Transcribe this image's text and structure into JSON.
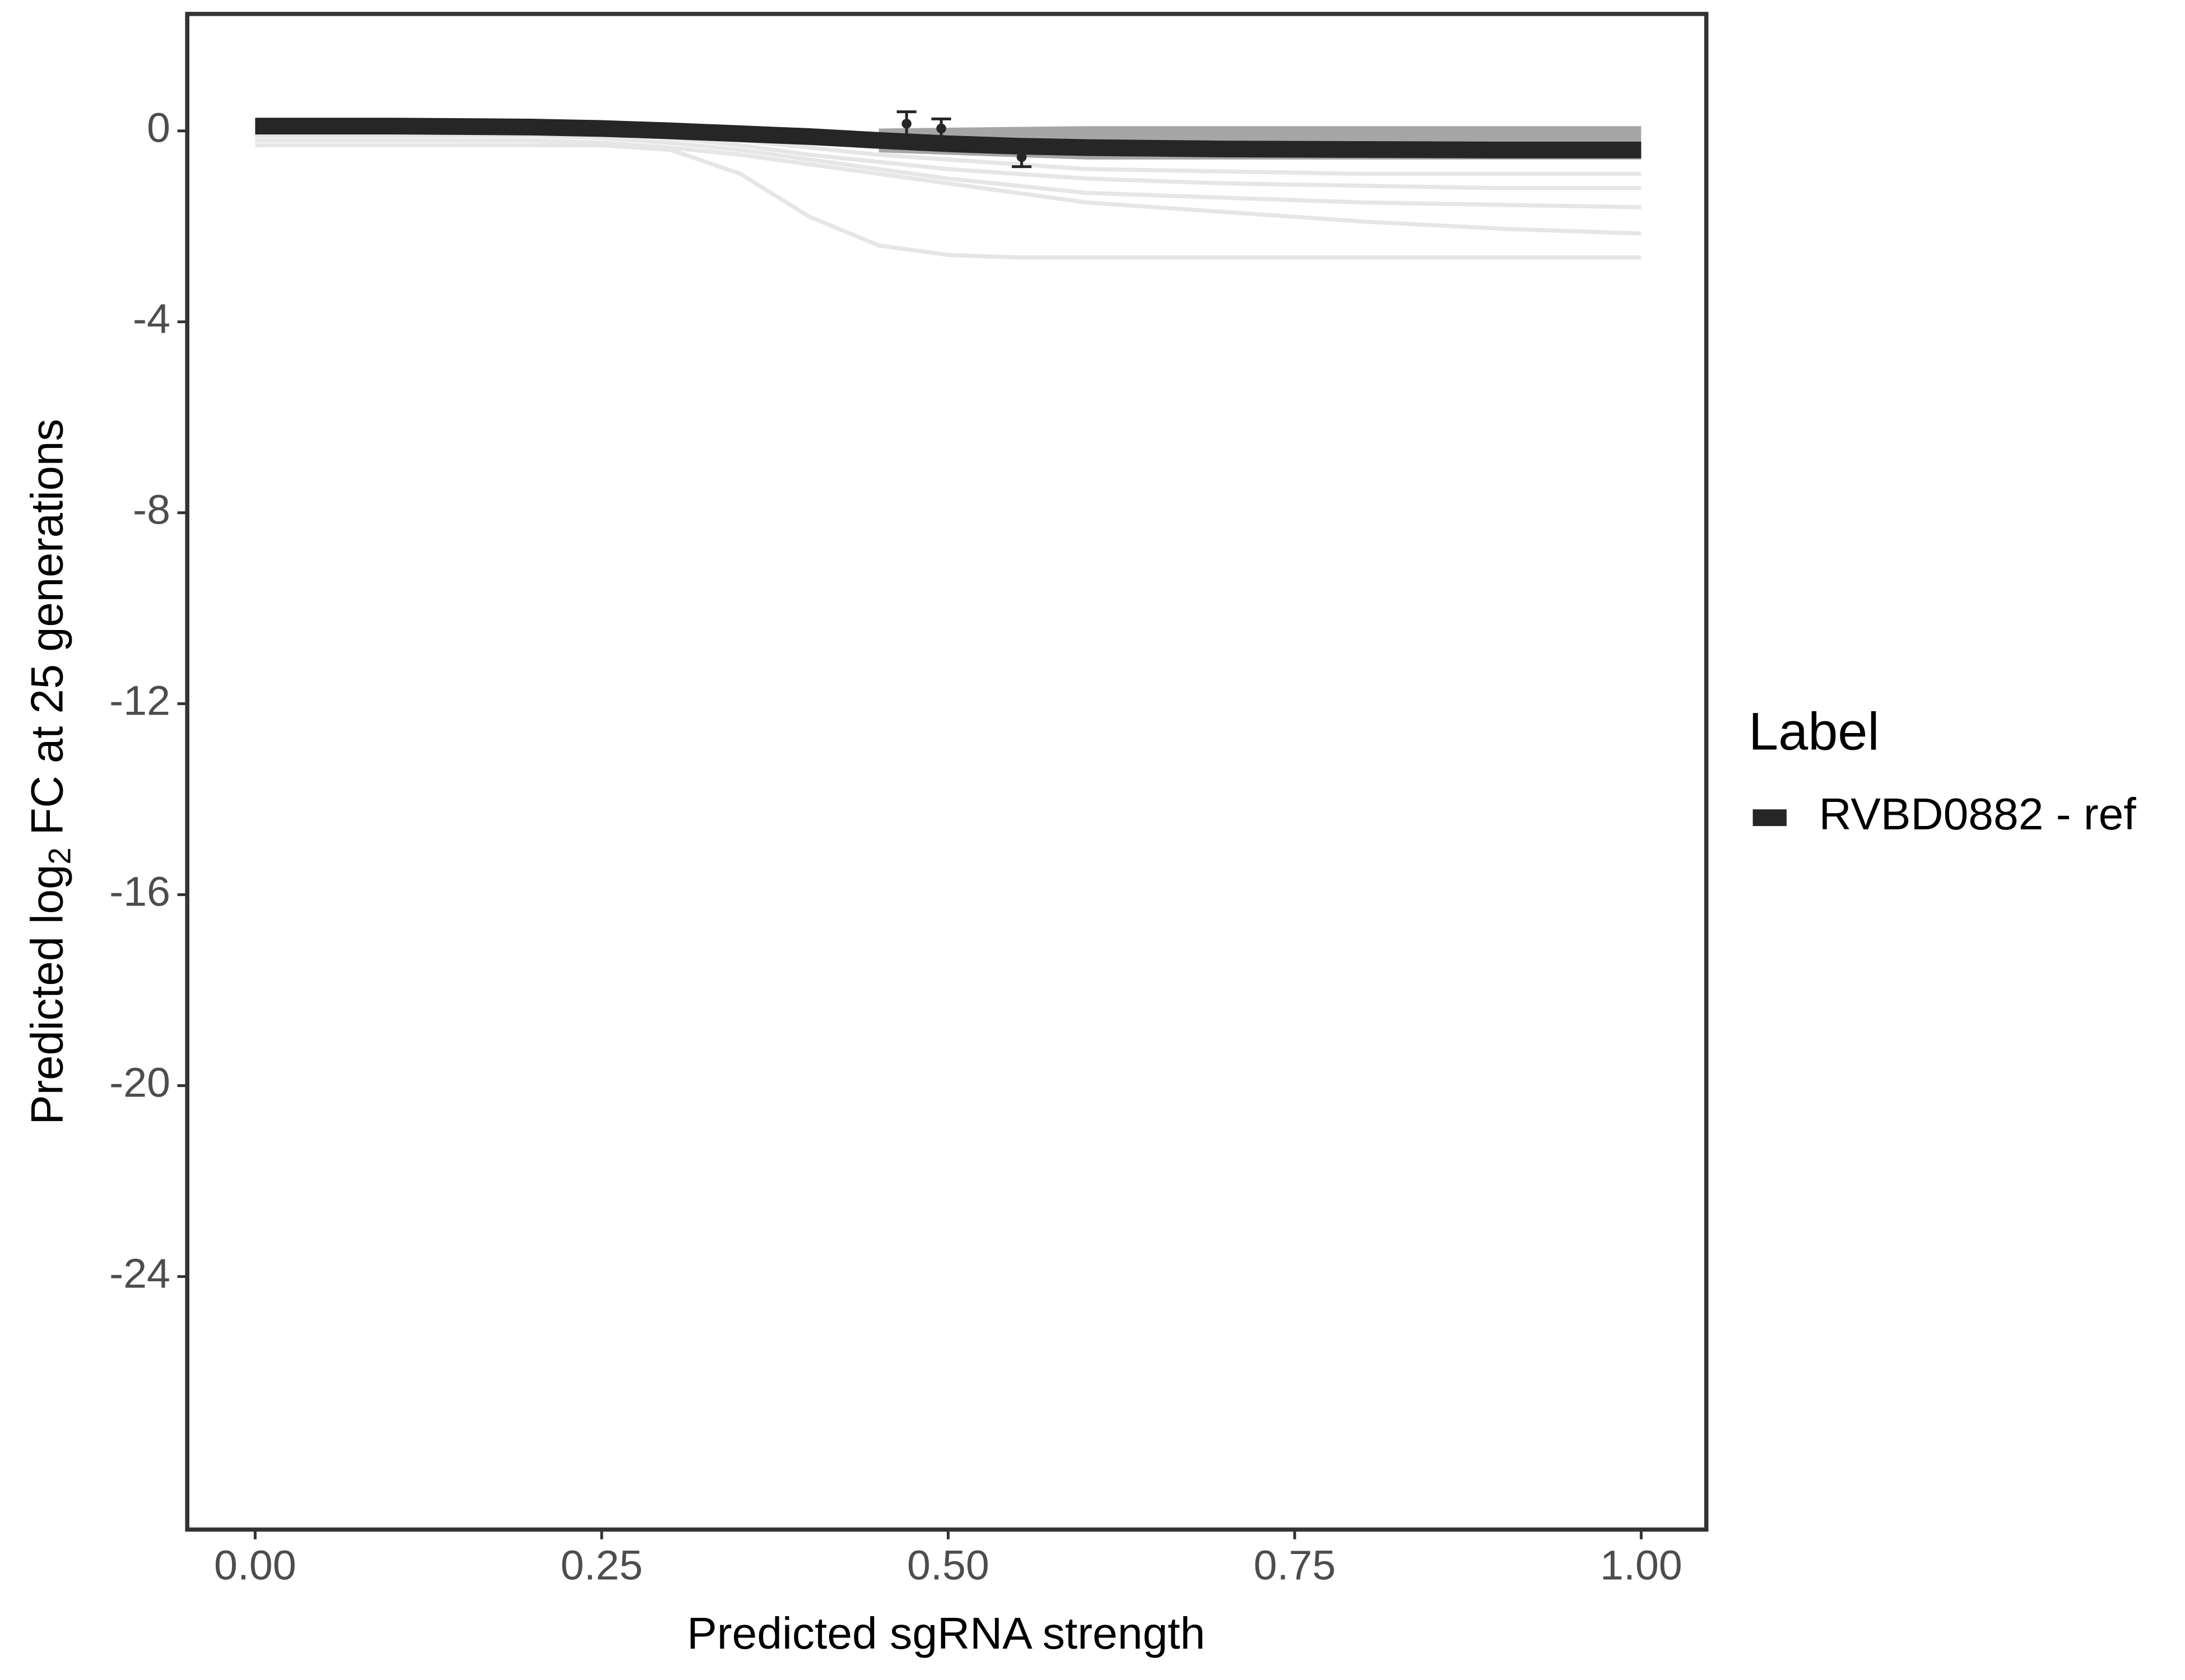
{
  "chart_data": {
    "type": "line",
    "xlabel": "Predicted sgRNA strength",
    "ylabel": {
      "before": "Predicted  log",
      "sub": "2",
      "after": " FC at 25 generations"
    },
    "legend_title": "Label",
    "x": [
      0,
      0.1,
      0.2,
      0.25,
      0.3,
      0.35,
      0.4,
      0.45,
      0.5,
      0.55,
      0.6,
      0.7,
      0.8,
      0.9,
      1.0
    ],
    "series": [
      {
        "name": "RVBD0882 - ref",
        "color": "#262626",
        "values": [
          0.1,
          0.1,
          0.08,
          0.05,
          0,
          -0.06,
          -0.12,
          -0.2,
          -0.27,
          -0.32,
          -0.35,
          -0.38,
          -0.39,
          -0.4,
          -0.4
        ]
      }
    ],
    "draws": {
      "color": "#e6e6e6",
      "values": [
        [
          -0.3,
          -0.3,
          -0.3,
          -0.3,
          -0.4,
          -0.9,
          -1.8,
          -2.4,
          -2.6,
          -2.65,
          -2.65,
          -2.65,
          -2.65,
          -2.65,
          -2.65
        ],
        [
          -0.2,
          -0.2,
          -0.2,
          -0.25,
          -0.35,
          -0.5,
          -0.7,
          -0.9,
          -1.1,
          -1.3,
          -1.5,
          -1.7,
          -1.9,
          -2.05,
          -2.15
        ],
        [
          -0.1,
          -0.1,
          -0.1,
          -0.15,
          -0.25,
          -0.4,
          -0.6,
          -0.8,
          -1.0,
          -1.15,
          -1.3,
          -1.4,
          -1.5,
          -1.55,
          -1.6
        ],
        [
          0,
          0,
          0,
          -0.05,
          -0.15,
          -0.3,
          -0.5,
          -0.65,
          -0.8,
          -0.9,
          -1.0,
          -1.1,
          -1.15,
          -1.2,
          -1.2
        ],
        [
          0.05,
          0.05,
          0,
          -0.05,
          -0.1,
          -0.2,
          -0.35,
          -0.5,
          -0.6,
          -0.7,
          -0.8,
          -0.85,
          -0.9,
          -0.9,
          -0.9
        ]
      ]
    },
    "band": {
      "color": "#a6a6a6",
      "x": [
        0.45,
        0.6,
        1.0
      ],
      "upper": [
        0.05,
        0.1,
        0.1
      ],
      "lower": [
        -0.45,
        -0.6,
        -0.6
      ]
    },
    "points": {
      "color": "#262626",
      "x": [
        0.47,
        0.495,
        0.553,
        0.57
      ],
      "y": [
        0.15,
        0.05,
        -0.55,
        -0.35
      ],
      "err": [
        0.25,
        0.2,
        0.2,
        0.1
      ]
    },
    "xlim": [
      -0.049,
      1.047
    ],
    "ylim": [
      -29.3,
      2.45
    ],
    "xticks": [
      {
        "value": 0,
        "label": "0.00"
      },
      {
        "value": 0.25,
        "label": "0.25"
      },
      {
        "value": 0.5,
        "label": "0.50"
      },
      {
        "value": 0.75,
        "label": "0.75"
      },
      {
        "value": 1,
        "label": "1.00"
      }
    ],
    "yticks": [
      0,
      -4,
      -8,
      -12,
      -16,
      -20,
      -24
    ],
    "grid": false
  }
}
